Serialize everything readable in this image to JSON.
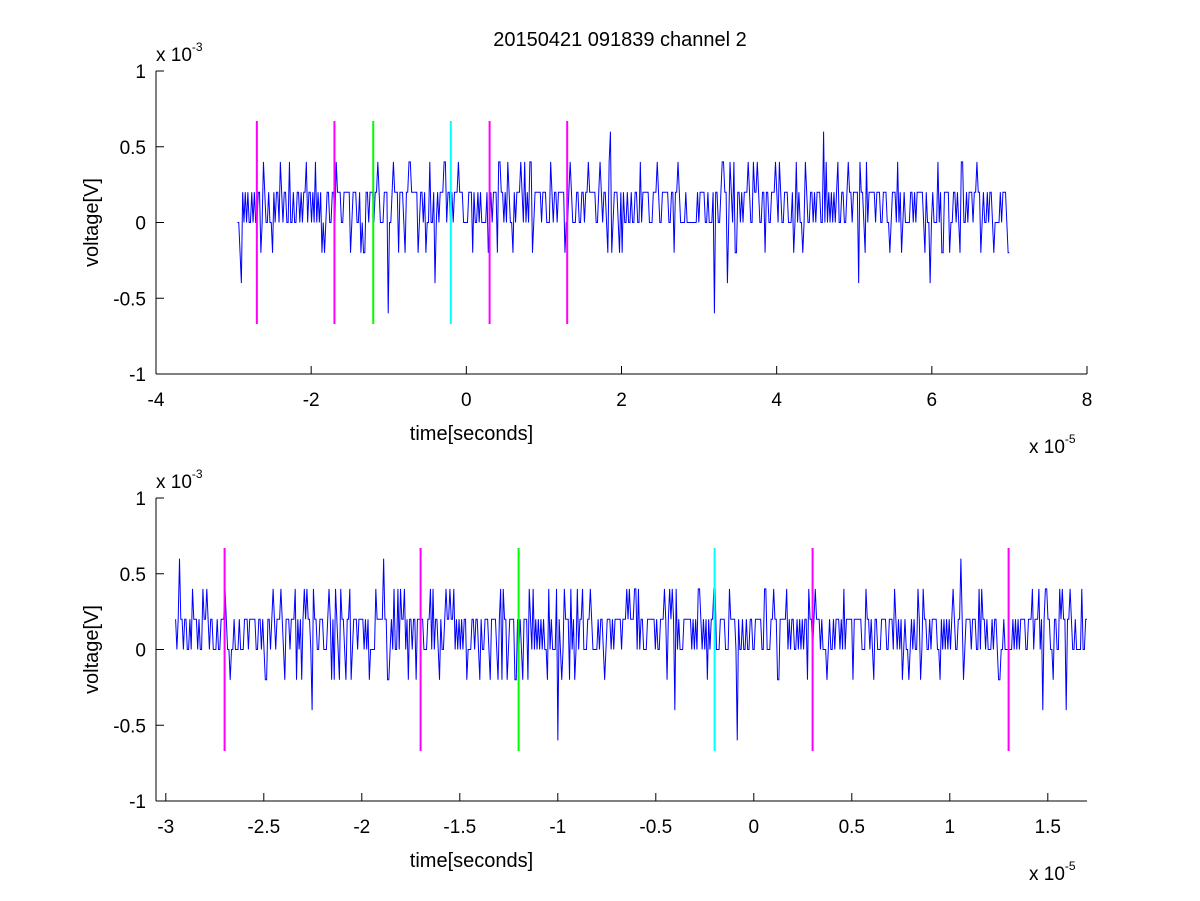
{
  "title": "20150421 091839 channel 2",
  "chart_data": [
    {
      "type": "line",
      "title": "20150421 091839 channel 2",
      "xlabel": "time[seconds]",
      "ylabel": "voltage[V]",
      "x_multiplier": {
        "base": "x 10",
        "exponent": "-5"
      },
      "y_multiplier": {
        "base": "x 10",
        "exponent": "-3"
      },
      "xlim": [
        -4,
        8
      ],
      "ylim": [
        -1,
        1
      ],
      "x_ticks": [
        -4,
        -2,
        0,
        2,
        4,
        6,
        8
      ],
      "x_tick_labels": [
        "-4",
        "-2",
        "0",
        "2",
        "4",
        "6",
        "8"
      ],
      "y_ticks": [
        -1,
        -0.5,
        0,
        0.5,
        1
      ],
      "y_tick_labels": [
        "-1",
        "-0.5",
        "0",
        "0.5",
        "1"
      ],
      "grid": false,
      "series": [
        {
          "color": "#0000ff",
          "x_range": [
            -2.95,
            7.0
          ],
          "noise": {
            "baseline_levels": [
              0,
              0.2
            ],
            "peak_levels": [
              0.4,
              -0.2
            ],
            "occasional": [
              0.6,
              -0.4,
              -0.6
            ]
          },
          "notable_points": [
            {
              "x": -1.0,
              "y": -0.6
            },
            {
              "x": -0.4,
              "y": -0.4
            },
            {
              "x": 1.85,
              "y": 0.6
            },
            {
              "x": 4.6,
              "y": 0.6
            },
            {
              "x": 5.05,
              "y": -0.4
            }
          ]
        }
      ],
      "vertical_markers": [
        {
          "x": -2.7,
          "y_range": [
            -0.67,
            0.67
          ],
          "color": "#ff00ff"
        },
        {
          "x": -1.7,
          "y_range": [
            -0.67,
            0.67
          ],
          "color": "#ff00ff"
        },
        {
          "x": -1.2,
          "y_range": [
            -0.67,
            0.67
          ],
          "color": "#00ff00"
        },
        {
          "x": -0.2,
          "y_range": [
            -0.67,
            0.67
          ],
          "color": "#00ffff"
        },
        {
          "x": 0.3,
          "y_range": [
            -0.67,
            0.67
          ],
          "color": "#ff00ff"
        },
        {
          "x": 1.3,
          "y_range": [
            -0.67,
            0.67
          ],
          "color": "#ff00ff"
        }
      ]
    },
    {
      "type": "line",
      "title": "",
      "xlabel": "time[seconds]",
      "ylabel": "voltage[V]",
      "x_multiplier": {
        "base": "x 10",
        "exponent": "-5"
      },
      "y_multiplier": {
        "base": "x 10",
        "exponent": "-3"
      },
      "xlim": [
        -3.05,
        1.7
      ],
      "ylim": [
        -1,
        1
      ],
      "x_ticks": [
        -3,
        -2.5,
        -2,
        -1.5,
        -1,
        -0.5,
        0,
        0.5,
        1,
        1.5
      ],
      "x_tick_labels": [
        "-3",
        "-2.5",
        "-2",
        "-1.5",
        "-1",
        "-0.5",
        "0",
        "0.5",
        "1",
        "1.5"
      ],
      "y_ticks": [
        -1,
        -0.5,
        0,
        0.5,
        1
      ],
      "y_tick_labels": [
        "-1",
        "-0.5",
        "0",
        "0.5",
        "1"
      ],
      "grid": false,
      "series": [
        {
          "color": "#0000ff",
          "x_range": [
            -2.95,
            1.7
          ],
          "noise": {
            "baseline_levels": [
              0,
              0.2
            ],
            "peak_levels": [
              0.4,
              -0.2
            ],
            "occasional": [
              0.6,
              -0.4,
              -0.6
            ]
          },
          "notable_points": [
            {
              "x": -1.0,
              "y": -0.6
            },
            {
              "x": -0.4,
              "y": -0.4
            }
          ]
        }
      ],
      "vertical_markers": [
        {
          "x": -2.7,
          "y_range": [
            -0.67,
            0.67
          ],
          "color": "#ff00ff"
        },
        {
          "x": -1.7,
          "y_range": [
            -0.67,
            0.67
          ],
          "color": "#ff00ff"
        },
        {
          "x": -1.2,
          "y_range": [
            -0.67,
            0.67
          ],
          "color": "#00ff00"
        },
        {
          "x": -0.2,
          "y_range": [
            -0.67,
            0.67
          ],
          "color": "#00ffff"
        },
        {
          "x": 0.3,
          "y_range": [
            -0.67,
            0.67
          ],
          "color": "#ff00ff"
        },
        {
          "x": 1.3,
          "y_range": [
            -0.67,
            0.67
          ],
          "color": "#ff00ff"
        }
      ]
    }
  ]
}
